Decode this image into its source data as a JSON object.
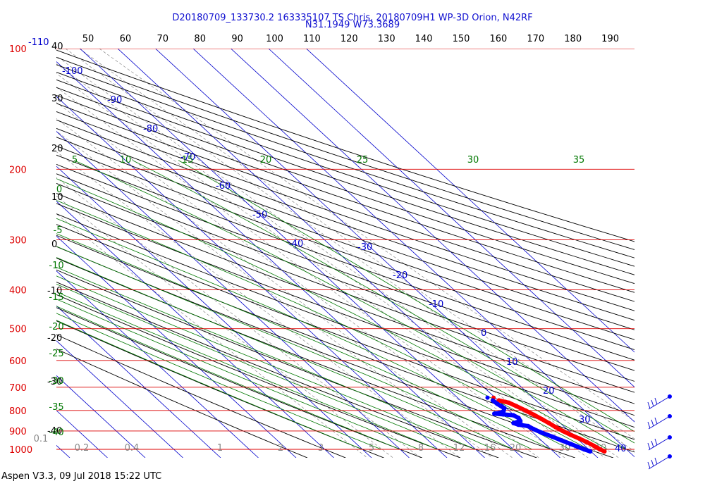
{
  "header": {
    "line1": "D20180709_133730.2 163335107 TS Chris, 20180709H1 WP-3D Orion, N42RF",
    "line2": "N31.1949 W73.3689"
  },
  "footer": {
    "text": "Aspen V3.3, 09 Jul 2018  15:22 UTC"
  },
  "colors": {
    "isobar": "#dd0000",
    "isotherm": "#0000cc",
    "dry_adiabat": "#000000",
    "moist_adiabat": "#007700",
    "mixing_ratio": "#888888",
    "temperature": "#ff0000",
    "dewpoint": "#0000ff"
  },
  "chart_data": {
    "type": "skew-t",
    "pressure_levels": [
      100,
      200,
      300,
      400,
      500,
      600,
      700,
      800,
      900,
      1000
    ],
    "pressure_labels": [
      "100",
      "200",
      "300",
      "400",
      "500",
      "600",
      "700",
      "800",
      "900",
      "1000"
    ],
    "isotherm_labels": [
      "-110",
      "-100",
      "-90",
      "-80",
      "-70",
      "-60",
      "-50",
      "-40",
      "-30",
      "-20",
      "-10",
      "0",
      "10",
      "20",
      "30",
      "40"
    ],
    "dry_adiabat_labels": [
      "40",
      "30",
      "20",
      "10",
      "0",
      "-10",
      "-20",
      "-30",
      "-40"
    ],
    "top_labels": [
      "50",
      "60",
      "70",
      "80",
      "90",
      "100",
      "110",
      "120",
      "130",
      "140",
      "150",
      "160",
      "170",
      "180",
      "190"
    ],
    "moist_adiabat_labels": [
      "5",
      "10",
      "15",
      "20",
      "25",
      "30",
      "35",
      "0",
      "-5",
      "-10",
      "-15",
      "-20",
      "-25",
      "-30",
      "-35",
      "-40"
    ],
    "mixing_ratio_labels": [
      "0.1",
      "0.2",
      "0.4",
      "1",
      "2",
      "3",
      "5",
      "8",
      "12",
      "16",
      "20",
      "30",
      "40"
    ],
    "temperature_profile": [
      {
        "p": 755,
        "t": 10.2
      },
      {
        "p": 765,
        "t": 12.2
      },
      {
        "p": 780,
        "t": 13.2
      },
      {
        "p": 800,
        "t": 14.4
      },
      {
        "p": 820,
        "t": 15.4
      },
      {
        "p": 840,
        "t": 16.2
      },
      {
        "p": 860,
        "t": 17.0
      },
      {
        "p": 880,
        "t": 17.6
      },
      {
        "p": 900,
        "t": 18.4
      },
      {
        "p": 920,
        "t": 19.4
      },
      {
        "p": 940,
        "t": 20.6
      },
      {
        "p": 960,
        "t": 21.6
      },
      {
        "p": 980,
        "t": 22.4
      },
      {
        "p": 1000,
        "t": 23.0
      },
      {
        "p": 1012,
        "t": 23.6
      }
    ],
    "dewpoint_profile": [
      {
        "p": 755,
        "t": 8.6
      },
      {
        "p": 770,
        "t": 8.8
      },
      {
        "p": 790,
        "t": 9.4
      },
      {
        "p": 805,
        "t": 8.2
      },
      {
        "p": 812,
        "t": 6.6
      },
      {
        "p": 815,
        "t": 5.2
      },
      {
        "p": 818,
        "t": 7.4
      },
      {
        "p": 822,
        "t": 9.8
      },
      {
        "p": 835,
        "t": 10.4
      },
      {
        "p": 850,
        "t": 10.0
      },
      {
        "p": 860,
        "t": 7.6
      },
      {
        "p": 868,
        "t": 8.4
      },
      {
        "p": 875,
        "t": 10.6
      },
      {
        "p": 890,
        "t": 11.2
      },
      {
        "p": 910,
        "t": 12.4
      },
      {
        "p": 930,
        "t": 14.0
      },
      {
        "p": 950,
        "t": 15.4
      },
      {
        "p": 970,
        "t": 16.8
      },
      {
        "p": 985,
        "t": 17.8
      },
      {
        "p": 1000,
        "t": 18.8
      },
      {
        "p": 1012,
        "t": 19.8
      }
    ]
  }
}
